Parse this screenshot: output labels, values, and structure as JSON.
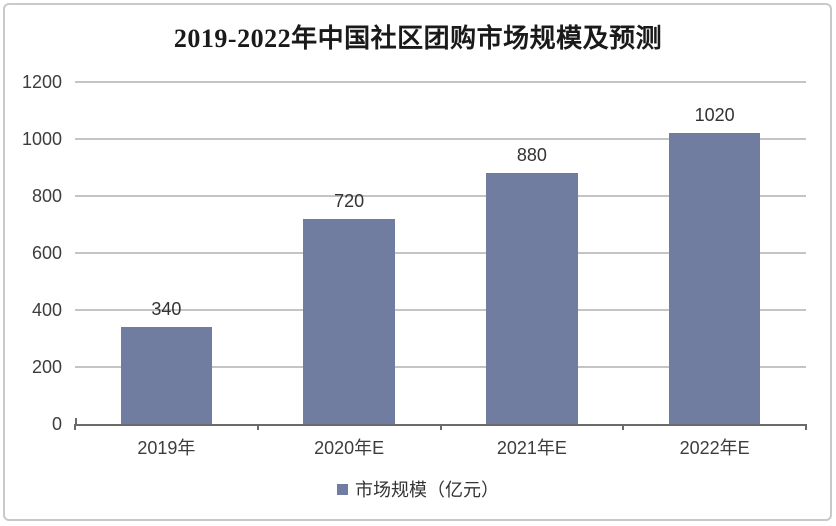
{
  "chart": {
    "panel_border_color": "#c9c9c9",
    "background_color": "#ffffff",
    "gridline_color": "#c4c4c4",
    "axis_color": "#6a6a6a",
    "text_color": "#3d3d3d"
  },
  "chart_data": {
    "type": "bar",
    "title": "2019-2022年中国社区团购市场规模及预测",
    "categories": [
      "2019年",
      "2020年E",
      "2021年E",
      "2022年E"
    ],
    "series": [
      {
        "name": "市场规模（亿元）",
        "values": [
          340,
          720,
          880,
          1020
        ],
        "color": "#717da0"
      }
    ],
    "data_labels": [
      "340",
      "720",
      "880",
      "1020"
    ],
    "xlabel": "",
    "ylabel": "",
    "ylim": [
      0,
      1200
    ],
    "yticks": [
      0,
      200,
      400,
      600,
      800,
      1000,
      1200
    ],
    "grid": true,
    "legend_position": "bottom"
  }
}
